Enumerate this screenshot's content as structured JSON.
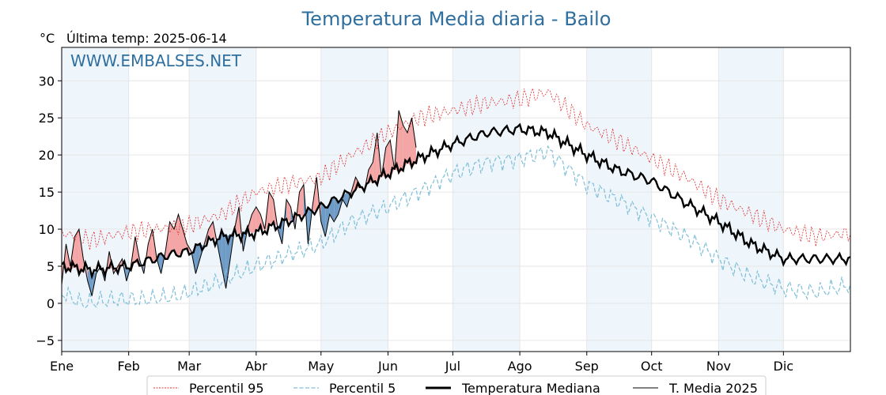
{
  "chart_data": {
    "type": "line",
    "title": "Temperatura Media diaria - Bailo",
    "unit_label": "°C",
    "last_temp_label": "Última temp: 2025-06-14",
    "watermark": "WWW.EMBALSES.NET",
    "ylim": [
      -6.5,
      34.5
    ],
    "yticks": [
      -5,
      0,
      5,
      10,
      15,
      20,
      25,
      30
    ],
    "ytick_labels": [
      "−5",
      "0",
      "5",
      "10",
      "15",
      "20",
      "25",
      "30"
    ],
    "xlim": [
      1,
      366
    ],
    "months": [
      {
        "label": "Ene",
        "day": 1
      },
      {
        "label": "Feb",
        "day": 32
      },
      {
        "label": "Mar",
        "day": 60
      },
      {
        "label": "Abr",
        "day": 91
      },
      {
        "label": "May",
        "day": 121
      },
      {
        "label": "Jun",
        "day": 152
      },
      {
        "label": "Jul",
        "day": 182
      },
      {
        "label": "Ago",
        "day": 213
      },
      {
        "label": "Sep",
        "day": 244
      },
      {
        "label": "Oct",
        "day": 274
      },
      {
        "label": "Nov",
        "day": 305
      },
      {
        "label": "Dic",
        "day": 335
      }
    ],
    "shaded_month_spans": [
      [
        1,
        32
      ],
      [
        60,
        91
      ],
      [
        121,
        152
      ],
      [
        182,
        213
      ],
      [
        244,
        274
      ],
      [
        305,
        335
      ]
    ],
    "grid": true,
    "legend_position": "bottom",
    "colors": {
      "p95": "#e03030",
      "p5": "#7fbfd8",
      "median": "#000000",
      "year": "#000000",
      "above_fill": "#f4a6a6",
      "below_fill": "#6f9cc6",
      "title": "#2f6f9f",
      "shade": "#eef5fb"
    },
    "series": [
      {
        "key": "p95",
        "name": "Percentil 95",
        "anchors": [
          [
            1,
            9.5
          ],
          [
            15,
            8.5
          ],
          [
            30,
            9.5
          ],
          [
            45,
            10
          ],
          [
            60,
            10.5
          ],
          [
            75,
            12
          ],
          [
            91,
            15
          ],
          [
            105,
            16
          ],
          [
            121,
            17
          ],
          [
            135,
            20
          ],
          [
            152,
            23
          ],
          [
            166,
            25
          ],
          [
            182,
            26
          ],
          [
            198,
            27
          ],
          [
            213,
            27.5
          ],
          [
            226,
            28.5
          ],
          [
            244,
            24
          ],
          [
            258,
            22
          ],
          [
            274,
            19.5
          ],
          [
            290,
            17
          ],
          [
            305,
            14
          ],
          [
            320,
            12
          ],
          [
            335,
            10
          ],
          [
            350,
            9
          ],
          [
            366,
            9.5
          ]
        ]
      },
      {
        "key": "p5",
        "name": "Percentil 5",
        "anchors": [
          [
            1,
            1.5
          ],
          [
            10,
            0
          ],
          [
            25,
            0.5
          ],
          [
            40,
            0.5
          ],
          [
            55,
            1
          ],
          [
            70,
            2.5
          ],
          [
            91,
            5
          ],
          [
            105,
            6.5
          ],
          [
            121,
            8
          ],
          [
            135,
            11
          ],
          [
            152,
            13
          ],
          [
            166,
            15
          ],
          [
            182,
            17.5
          ],
          [
            198,
            19
          ],
          [
            213,
            19.5
          ],
          [
            226,
            20.5
          ],
          [
            244,
            16
          ],
          [
            258,
            14
          ],
          [
            274,
            11.5
          ],
          [
            290,
            9
          ],
          [
            305,
            6
          ],
          [
            320,
            3.5
          ],
          [
            335,
            2
          ],
          [
            350,
            1.5
          ],
          [
            366,
            2.5
          ]
        ]
      },
      {
        "key": "median",
        "name": "Temperatura Mediana",
        "anchors": [
          [
            1,
            5
          ],
          [
            15,
            4.5
          ],
          [
            32,
            5
          ],
          [
            50,
            6.5
          ],
          [
            60,
            7
          ],
          [
            75,
            9
          ],
          [
            91,
            9.5
          ],
          [
            105,
            11
          ],
          [
            121,
            13
          ],
          [
            135,
            15
          ],
          [
            152,
            17.5
          ],
          [
            166,
            19.5
          ],
          [
            182,
            21.5
          ],
          [
            198,
            23
          ],
          [
            213,
            23.5
          ],
          [
            226,
            23
          ],
          [
            244,
            20
          ],
          [
            258,
            18
          ],
          [
            274,
            16.5
          ],
          [
            290,
            13.5
          ],
          [
            305,
            11
          ],
          [
            320,
            8
          ],
          [
            335,
            6
          ],
          [
            350,
            6
          ],
          [
            366,
            6
          ]
        ]
      },
      {
        "key": "year",
        "name": "T. Media 2025",
        "x": [
          1,
          3,
          5,
          7,
          9,
          11,
          13,
          15,
          17,
          19,
          21,
          23,
          25,
          27,
          29,
          31,
          33,
          35,
          37,
          39,
          41,
          43,
          45,
          47,
          49,
          51,
          53,
          55,
          57,
          59,
          61,
          63,
          65,
          67,
          69,
          71,
          73,
          75,
          77,
          79,
          81,
          83,
          85,
          87,
          89,
          91,
          93,
          95,
          97,
          99,
          101,
          103,
          105,
          107,
          109,
          111,
          113,
          115,
          117,
          119,
          121,
          123,
          125,
          127,
          129,
          131,
          133,
          135,
          137,
          139,
          141,
          143,
          145,
          147,
          149,
          151,
          153,
          155,
          157,
          159,
          161,
          163,
          165
        ],
        "values": [
          2.5,
          8,
          5,
          9,
          10,
          6,
          3,
          1,
          4,
          5,
          3,
          7,
          4,
          5,
          6,
          3,
          5,
          9,
          6,
          4,
          8,
          10,
          6,
          4,
          7,
          11,
          10,
          12,
          10,
          8,
          7,
          4,
          6,
          8,
          10,
          11,
          8,
          5,
          2,
          6,
          10,
          13,
          7,
          10,
          12,
          13,
          12,
          10,
          15,
          14,
          10,
          8,
          14,
          13,
          10,
          15,
          16,
          8,
          13,
          17,
          11,
          9,
          12,
          11,
          12,
          14,
          13,
          15,
          17,
          16,
          15,
          18,
          19,
          23,
          17,
          21,
          22,
          18,
          26,
          24,
          23,
          25,
          21
        ]
      }
    ]
  }
}
